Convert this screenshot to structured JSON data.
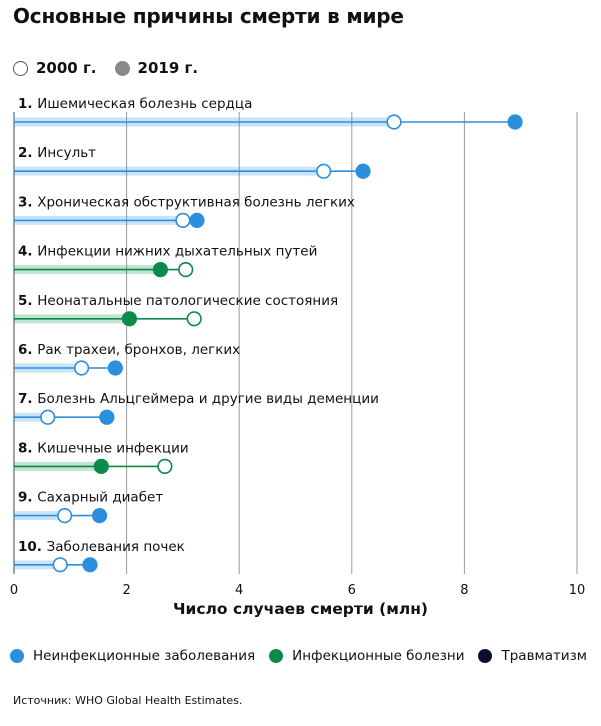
{
  "title": "Основные причины смерти в мире",
  "top_legend": [
    {
      "label": "2000 г.",
      "marker": "open"
    },
    {
      "label": "2019 г.",
      "marker": "filled"
    }
  ],
  "groups": [
    {
      "label": "Неинфекционные заболевания",
      "color": "#2b8fde"
    },
    {
      "label": "Инфекционные болезни",
      "color": "#0b8a4a"
    },
    {
      "label": "Травматизм",
      "color": "#0b0f2e"
    }
  ],
  "source": "Источник: WHO Global Health Estimates.",
  "chart_data": {
    "type": "dumbbell",
    "title": "Основные причины смерти в мире",
    "xlabel": "Число случаев смерти (млн)",
    "ylabel": "",
    "xlim": [
      0,
      10
    ],
    "xticks": [
      0,
      2,
      4,
      6,
      8,
      10
    ],
    "grid": true,
    "series_names": [
      "2000 г.",
      "2019 г."
    ],
    "categories": [
      {
        "num": "1.",
        "label": "Ишемическая болезнь сердца",
        "group": "Неинфекционные заболевания",
        "y2000": 6.75,
        "y2019": 8.9
      },
      {
        "num": "2.",
        "label": "Инсульт",
        "group": "Неинфекционные заболевания",
        "y2000": 5.5,
        "y2019": 6.2
      },
      {
        "num": "3.",
        "label": "Хроническая обструктивная болезнь легких",
        "group": "Неинфекционные заболевания",
        "y2000": 3.0,
        "y2019": 3.25
      },
      {
        "num": "4.",
        "label": "Инфекции нижних дыхательных путей",
        "group": "Инфекционные болезни",
        "y2000": 3.05,
        "y2019": 2.6
      },
      {
        "num": "5.",
        "label": "Неонатальные патологические состояния",
        "group": "Инфекционные болезни",
        "y2000": 3.2,
        "y2019": 2.05
      },
      {
        "num": "6.",
        "label": "Рак трахеи, бронхов, легких",
        "group": "Неинфекционные заболевания",
        "y2000": 1.2,
        "y2019": 1.8
      },
      {
        "num": "7.",
        "label": "Болезнь Альцгеймера и другие виды деменции",
        "group": "Неинфекционные заболевания",
        "y2000": 0.6,
        "y2019": 1.65
      },
      {
        "num": "8.",
        "label": "Кишечные инфекции",
        "group": "Инфекционные болезни",
        "y2000": 2.68,
        "y2019": 1.55
      },
      {
        "num": "9.",
        "label": "Сахарный диабет",
        "group": "Неинфекционные заболевания",
        "y2000": 0.9,
        "y2019": 1.52
      },
      {
        "num": "10.",
        "label": "Заболевания почек",
        "group": "Неинфекционные заболевания",
        "y2000": 0.82,
        "y2019": 1.35
      }
    ]
  }
}
